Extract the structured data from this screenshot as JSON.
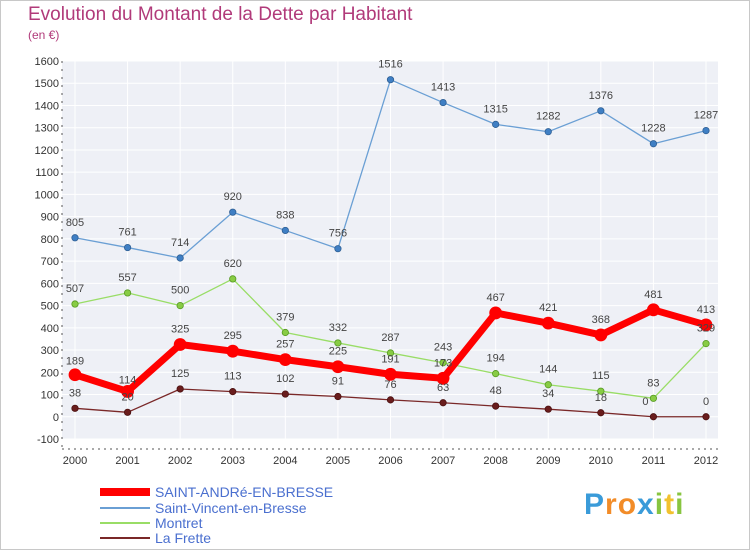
{
  "title": "Evolution du Montant de la Dette par Habitant",
  "subtitle": "(en €)",
  "logo": "Proxiti",
  "chart_data": {
    "type": "line",
    "x": [
      "2000",
      "2001",
      "2002",
      "2003",
      "2004",
      "2005",
      "2006",
      "2007",
      "2008",
      "2009",
      "2010",
      "2011",
      "2012"
    ],
    "ylim": [
      -100,
      1600
    ],
    "yticks": [
      -100,
      0,
      100,
      200,
      300,
      400,
      500,
      600,
      700,
      800,
      900,
      1000,
      1100,
      1200,
      1300,
      1400,
      1500,
      1600
    ],
    "grid": true,
    "legend_position": "bottom-left",
    "series": [
      {
        "name": "SAINT-ANDRé-EN-BRESSE",
        "color": "#ff0000",
        "values": [
          189,
          114,
          325,
          295,
          257,
          225,
          191,
          173,
          467,
          421,
          368,
          481,
          413
        ]
      },
      {
        "name": "Saint-Vincent-en-Bresse",
        "color": "#6a9fd4",
        "values": [
          805,
          761,
          714,
          920,
          838,
          756,
          1516,
          1413,
          1315,
          1282,
          1376,
          1228,
          1287
        ]
      },
      {
        "name": "Montret",
        "color": "#99dd66",
        "values": [
          507,
          557,
          500,
          620,
          379,
          332,
          287,
          243,
          194,
          144,
          115,
          83,
          329
        ]
      },
      {
        "name": "La Frette",
        "color": "#7a2828",
        "values": [
          38,
          20,
          125,
          113,
          102,
          91,
          76,
          63,
          48,
          34,
          18,
          0,
          0
        ]
      }
    ]
  }
}
